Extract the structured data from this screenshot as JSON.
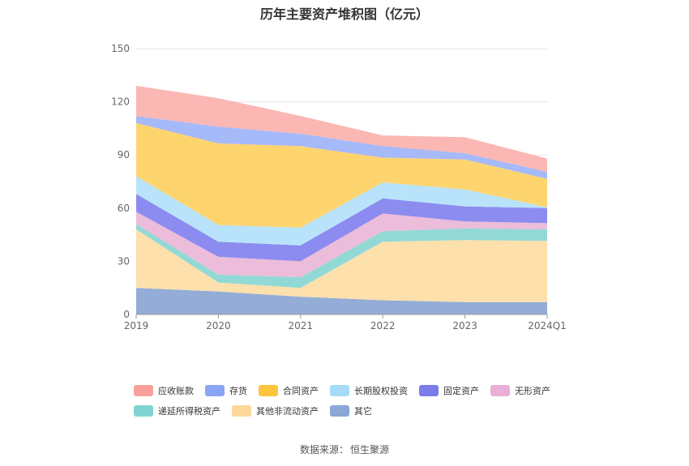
{
  "chart_data": {
    "type": "area",
    "stacked": true,
    "title": "历年主要资产堆积图（亿元）",
    "categories": [
      "2019",
      "2020",
      "2021",
      "2022",
      "2023",
      "2024Q1"
    ],
    "ylim": [
      0,
      150
    ],
    "yticks": [
      0,
      30,
      60,
      90,
      120,
      150
    ],
    "grid": true,
    "legend_position": "bottom",
    "series": [
      {
        "name": "其它",
        "color": "#93add7",
        "values": [
          15,
          13,
          10,
          8,
          7,
          7
        ]
      },
      {
        "name": "其他非流动资产",
        "color": "#fde0ac",
        "values": [
          33,
          5,
          5,
          33,
          35,
          34.5
        ]
      },
      {
        "name": "递延所得税资产",
        "color": "#92d9d6",
        "values": [
          3,
          4.5,
          6,
          6,
          6.5,
          6.5
        ]
      },
      {
        "name": "无形资产",
        "color": "#ecbcdb",
        "values": [
          7,
          10,
          9,
          10,
          4,
          3.5
        ]
      },
      {
        "name": "固定资产",
        "color": "#8c8cf0",
        "values": [
          10,
          8.5,
          9,
          8.5,
          8.5,
          8.5
        ]
      },
      {
        "name": "长期股权投资",
        "color": "#b8e3fa",
        "values": [
          10,
          9.5,
          10,
          9,
          9.5,
          0.5
        ]
      },
      {
        "name": "合同资产",
        "color": "#fed46f",
        "values": [
          30,
          46,
          46,
          14,
          17,
          16
        ]
      },
      {
        "name": "存货",
        "color": "#a6b9f8",
        "values": [
          4,
          9.5,
          7,
          6.5,
          3.5,
          4
        ]
      },
      {
        "name": "应收账款",
        "color": "#fbb7b3",
        "values": [
          17,
          16,
          10,
          6,
          9,
          7.5
        ]
      }
    ]
  },
  "legend_order": [
    "应收账款",
    "存货",
    "合同资产",
    "长期股权投资",
    "固定资产",
    "无形资产",
    "递延所得税资产",
    "其他非流动资产",
    "其它"
  ],
  "legend_swatch_colors": {
    "应收账款": "#f9a09b",
    "存货": "#8aa5f5",
    "合同资产": "#fdc43e",
    "长期股权投资": "#a5dbf7",
    "固定资产": "#7b7bea",
    "无形资产": "#e8b0d6",
    "递延所得税资产": "#7fd4d1",
    "其他非流动资产": "#fdd89a",
    "其它": "#8aa7d6"
  },
  "source": {
    "label": "数据来源：",
    "value": "恒生聚源"
  }
}
